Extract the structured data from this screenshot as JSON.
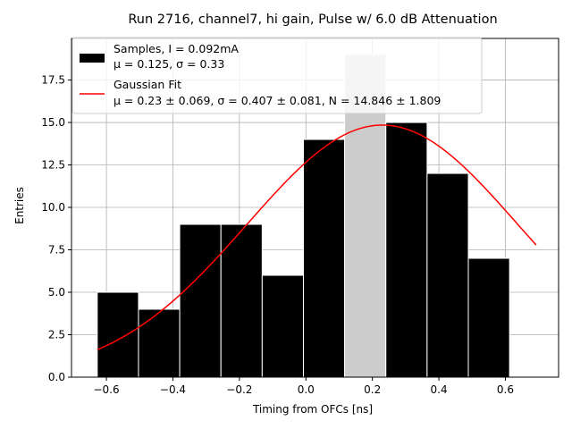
{
  "chart_data": {
    "type": "bar",
    "title": "Run 2716, channel7, hi gain, Pulse w/ 6.0 dB Attenuation",
    "xlabel": "Timing from OFCs [ns]",
    "ylabel": "Entries",
    "xlim": [
      -0.705,
      0.76
    ],
    "ylim": [
      0.0,
      19.95
    ],
    "grid": true,
    "x_ticks": [
      -0.6,
      -0.4,
      -0.2,
      0.0,
      0.2,
      0.4,
      0.6
    ],
    "x_tick_labels": [
      "−0.6",
      "−0.4",
      "−0.2",
      "0.0",
      "0.2",
      "0.4",
      "0.6"
    ],
    "y_ticks": [
      0.0,
      2.5,
      5.0,
      7.5,
      10.0,
      12.5,
      15.0,
      17.5
    ],
    "y_tick_labels": [
      "0.0",
      "2.5",
      "5.0",
      "7.5",
      "10.0",
      "12.5",
      "15.0",
      "17.5"
    ],
    "bins": [
      {
        "left": -0.6275,
        "right": -0.5035,
        "count": 5
      },
      {
        "left": -0.5035,
        "right": -0.3795,
        "count": 4
      },
      {
        "left": -0.3795,
        "right": -0.2555,
        "count": 9
      },
      {
        "left": -0.2555,
        "right": -0.1315,
        "count": 9
      },
      {
        "left": -0.1315,
        "right": -0.0075,
        "count": 6
      },
      {
        "left": -0.0075,
        "right": 0.1165,
        "count": 14
      },
      {
        "left": 0.1165,
        "right": 0.2405,
        "count": 19,
        "highlighted": true
      },
      {
        "left": 0.2405,
        "right": 0.3645,
        "count": 15
      },
      {
        "left": 0.3645,
        "right": 0.4885,
        "count": 12
      },
      {
        "left": 0.4885,
        "right": 0.6125,
        "count": 7
      }
    ],
    "bar_color": "#000000",
    "highlight_color": "#cccccc",
    "fit": {
      "mu": 0.23,
      "sigma": 0.407,
      "N": 14.846,
      "x_start": -0.6275,
      "x_end": 0.6925,
      "color": "#ff0000"
    },
    "legend": {
      "placement": "top-left",
      "samples_line1": "Samples, I = 0.092mA",
      "samples_line2": "μ = 0.125, σ = 0.33",
      "fit_line1": "Gaussian Fit",
      "fit_line2": "μ = 0.23 ± 0.069, σ = 0.407 ± 0.081, N = 14.846 ± 1.809"
    }
  }
}
